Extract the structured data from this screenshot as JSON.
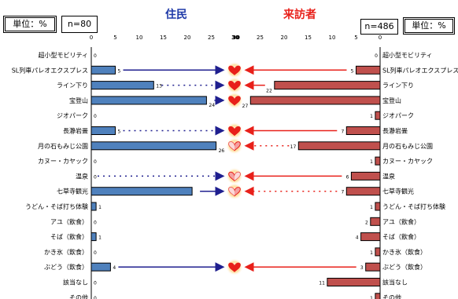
{
  "chart_data": {
    "type": "bar",
    "categories": [
      "超小型モビリティ",
      "SL列車パレオエクスプレス",
      "ライン下り",
      "宝登山",
      "ジオパーク",
      "長瀞岩畳",
      "月の石もみじ公園",
      "カヌー・カヤック",
      "温泉",
      "七草寺観光",
      "うどん・そば打ち体験",
      "アユ（飲食）",
      "そば（飲食）",
      "かき氷（飲食）",
      "ぶどう（飲食）",
      "該当なし",
      "その他"
    ],
    "series": [
      {
        "name": "住民",
        "n": "n=80",
        "unit": "単位：%",
        "color": "#4f81bd",
        "values": [
          0,
          5,
          13,
          24,
          0,
          5,
          26,
          0,
          0,
          21,
          1,
          0,
          1,
          0,
          4,
          0,
          0
        ]
      },
      {
        "name": "来訪者",
        "n": "n=486",
        "unit": "単位：%",
        "color": "#c0504d",
        "values": [
          0,
          5,
          22,
          27,
          1,
          7,
          17,
          1,
          6,
          7,
          1,
          2,
          4,
          1,
          3,
          11,
          1
        ]
      }
    ],
    "value_labels": {
      "resident": [
        "0",
        "5",
        "13",
        "24",
        "0",
        "5",
        "26",
        "0",
        "0",
        "",
        "1",
        "0",
        "1",
        "0",
        "4",
        "0",
        "0"
      ],
      "visitor": [
        "0",
        "5",
        "22",
        "27",
        "1",
        "7",
        "17",
        "1",
        "6",
        "7",
        "1",
        "2",
        "4",
        "1",
        "3",
        "11",
        "1"
      ]
    },
    "left_axis": {
      "ticks": [
        "0",
        "5",
        "10",
        "15",
        "20",
        "25",
        "30"
      ]
    },
    "right_axis": {
      "ticks": [
        "30",
        "25",
        "20",
        "15",
        "10",
        "5",
        "0"
      ]
    },
    "xlim": [
      0,
      30
    ],
    "annotations": [
      {
        "row": 1,
        "left": "solid",
        "right": "solid",
        "heart": "full"
      },
      {
        "row": 2,
        "left": "dotted",
        "right": "solid",
        "heart": "full"
      },
      {
        "row": 3,
        "left": "solid",
        "right": "solid",
        "heart": "full"
      },
      {
        "row": 5,
        "left": "dotted",
        "right": "solid",
        "heart": "full"
      },
      {
        "row": 6,
        "left": "solid",
        "right": "dotted",
        "heart": "half-left"
      },
      {
        "row": 8,
        "left": "dotted",
        "right": "solid",
        "heart": "half-right"
      },
      {
        "row": 9,
        "left": "solid",
        "right": "dotted",
        "heart": "half-left"
      },
      {
        "row": 14,
        "left": "solid",
        "right": "solid",
        "heart": "full"
      }
    ]
  }
}
